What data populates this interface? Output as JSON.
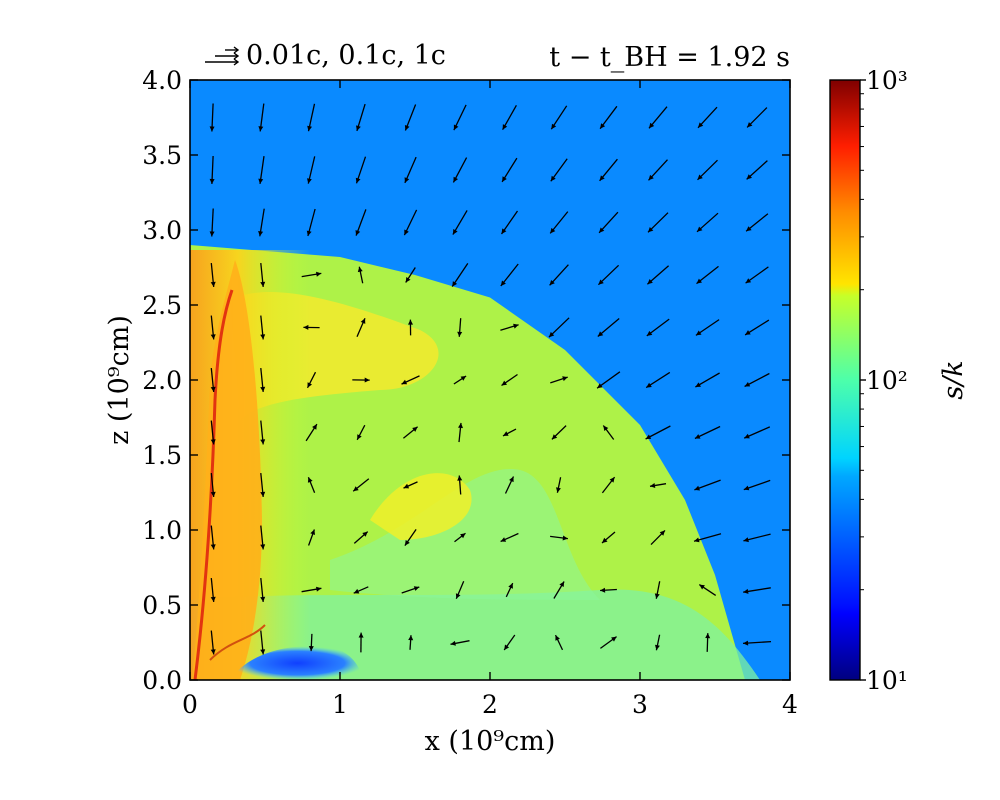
{
  "chart_data": {
    "type": "heatmap",
    "xlabel": "x (10⁹cm)",
    "ylabel": "z (10⁹cm)",
    "xlim": [
      0,
      4
    ],
    "ylim": [
      0,
      4
    ],
    "x_ticks": [
      "0",
      "1",
      "2",
      "3",
      "4"
    ],
    "y_ticks": [
      "0.0",
      "0.5",
      "1.0",
      "1.5",
      "2.0",
      "2.5",
      "3.0",
      "3.5",
      "4.0"
    ],
    "time_label": "t − t_BH = 1.92 s",
    "velocity_legend": "0.01c, 0.1c, 1c",
    "colorbar": {
      "label": "s/k",
      "scale": "log",
      "range": [
        10,
        1000
      ],
      "ticks": [
        "10¹",
        "10²",
        "10³"
      ],
      "colormap": "jet"
    },
    "outer_entropy_color": "#0a8aff",
    "shock_front_profile": [
      {
        "x": 0.0,
        "z": 2.9
      },
      {
        "x": 0.5,
        "z": 2.86
      },
      {
        "x": 1.0,
        "z": 2.82
      },
      {
        "x": 1.5,
        "z": 2.7
      },
      {
        "x": 2.0,
        "z": 2.55
      },
      {
        "x": 2.5,
        "z": 2.2
      },
      {
        "x": 3.0,
        "z": 1.7
      },
      {
        "x": 3.3,
        "z": 1.2
      },
      {
        "x": 3.5,
        "z": 0.7
      },
      {
        "x": 3.7,
        "z": 0.0
      }
    ],
    "vector_field_grid": {
      "x_values": [
        0.15,
        0.48,
        0.81,
        1.14,
        1.47,
        1.8,
        2.13,
        2.46,
        2.79,
        3.12,
        3.45,
        3.78
      ],
      "z_values": [
        3.75,
        3.4,
        3.05,
        2.7,
        2.35,
        2.0,
        1.65,
        1.3,
        0.95,
        0.6,
        0.25
      ]
    }
  }
}
